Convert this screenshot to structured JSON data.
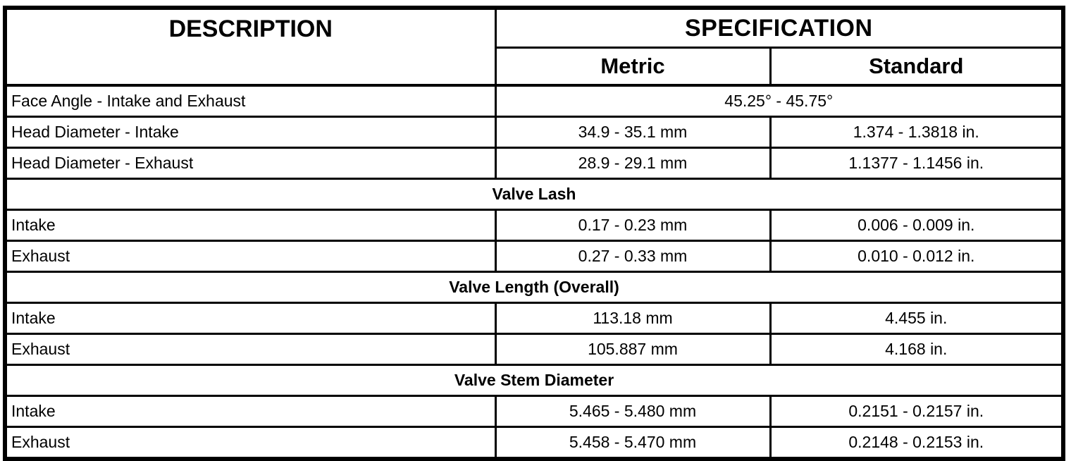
{
  "header": {
    "description": "DESCRIPTION",
    "specification": "SPECIFICATION",
    "metric": "Metric",
    "standard": "Standard"
  },
  "rows": [
    {
      "description": "Face Angle - Intake and Exhaust",
      "value_span": "45.25° - 45.75°"
    },
    {
      "description": "Head Diameter - Intake",
      "metric": "34.9 - 35.1 mm",
      "standard": "1.374 - 1.3818 in."
    },
    {
      "description": "Head Diameter - Exhaust",
      "metric": "28.9 - 29.1 mm",
      "standard": "1.1377 - 1.1456 in."
    },
    {
      "section": "Valve Lash"
    },
    {
      "description": "Intake",
      "metric": "0.17 - 0.23 mm",
      "standard": "0.006 - 0.009 in."
    },
    {
      "description": "Exhaust",
      "metric": "0.27 - 0.33 mm",
      "standard": "0.010 - 0.012 in."
    },
    {
      "section": "Valve Length (Overall)"
    },
    {
      "description": "Intake",
      "metric": "113.18 mm",
      "standard": "4.455 in."
    },
    {
      "description": "Exhaust",
      "metric": "105.887 mm",
      "standard": "4.168 in."
    },
    {
      "section": "Valve Stem Diameter"
    },
    {
      "description": "Intake",
      "metric": "5.465 - 5.480 mm",
      "standard": "0.2151 - 0.2157 in."
    },
    {
      "description": "Exhaust",
      "metric": "5.458 - 5.470 mm",
      "standard": "0.2148 - 0.2153 in."
    }
  ]
}
